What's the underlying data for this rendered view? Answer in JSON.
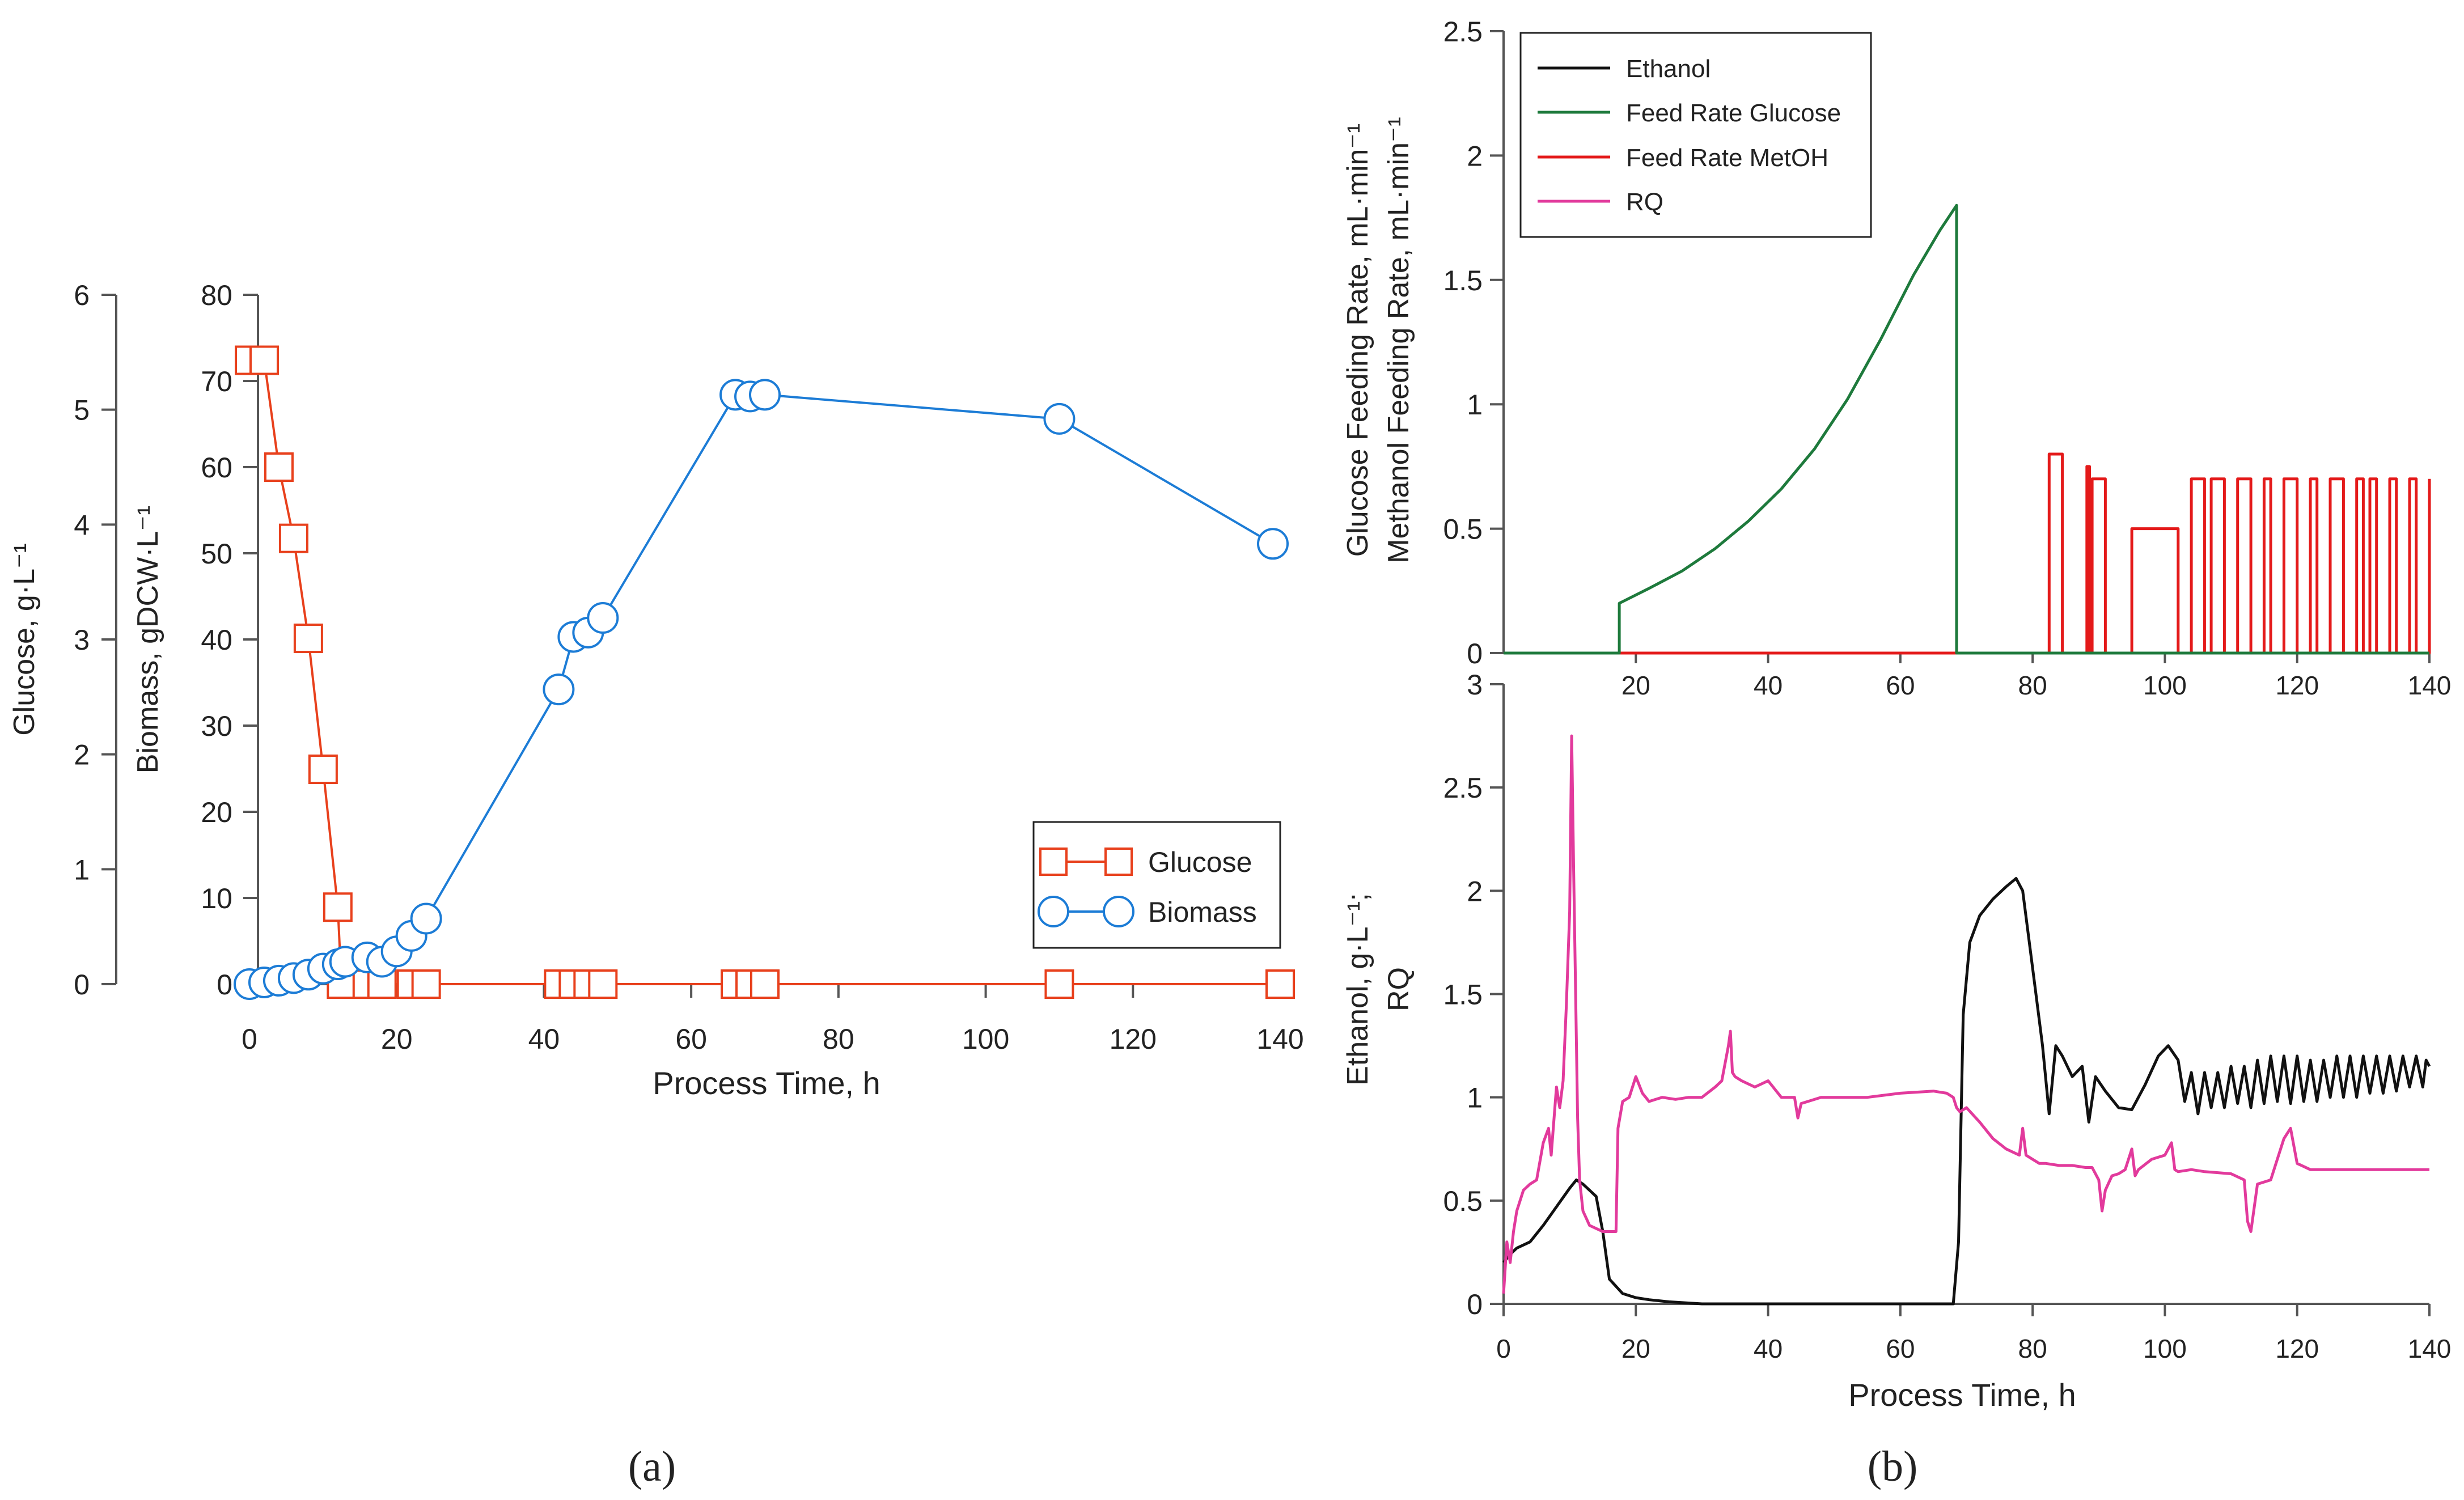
{
  "chart_data": [
    {
      "panel": "a",
      "type": "scatter",
      "panel_label": "(a)",
      "xlabel": "Process Time, h",
      "xlim": [
        0,
        140
      ],
      "xticks": [
        "0",
        "20",
        "40",
        "60",
        "80",
        "100",
        "120",
        "140"
      ],
      "ylabel_left": "Glucose, g·L⁻¹",
      "ylim_left": [
        0,
        6
      ],
      "yticks_left": [
        "0",
        "1",
        "2",
        "3",
        "4",
        "5",
        "6"
      ],
      "ylabel_right": "Biomass, gDCW·L⁻¹",
      "ylim_right": [
        0,
        80
      ],
      "yticks_right": [
        "0",
        "10",
        "20",
        "30",
        "40",
        "50",
        "60",
        "70",
        "80"
      ],
      "legend_position": "lower-right",
      "series": [
        {
          "name": "Glucose",
          "axis": "glucose",
          "marker": "square",
          "color": "#e8401c",
          "x": [
            0,
            2,
            4,
            6,
            8,
            10,
            12,
            12.5,
            16,
            18,
            22,
            24,
            42,
            44,
            46,
            48,
            66,
            68,
            70,
            110,
            140
          ],
          "y": [
            5.43,
            5.43,
            4.5,
            3.88,
            3.01,
            1.87,
            0.67,
            0,
            0,
            0,
            0,
            0,
            0,
            0,
            0,
            0,
            0,
            0,
            0,
            0,
            0
          ]
        },
        {
          "name": "Biomass",
          "axis": "biomass",
          "marker": "circle",
          "color": "#1c7cd6",
          "x": [
            0,
            2,
            4,
            6,
            8,
            10,
            12,
            13,
            16,
            18,
            20,
            22,
            24,
            42,
            44,
            46,
            48,
            66,
            68,
            70,
            110,
            139
          ],
          "y": [
            0,
            0.2,
            0.4,
            0.7,
            1.1,
            1.8,
            2.3,
            2.6,
            3.1,
            2.6,
            3.8,
            5.6,
            7.6,
            34.2,
            40.3,
            40.8,
            42.5,
            68.4,
            68.2,
            68.4,
            65.6,
            51.1
          ]
        }
      ]
    },
    {
      "panel": "b-top",
      "type": "line",
      "panel_label": "(b)",
      "ylabel_line1": "Glucose Feeding Rate, mL·min⁻¹",
      "ylabel_line2": "Methanol Feeding Rate, mL·min⁻¹",
      "xlim": [
        0,
        140
      ],
      "xticks": [
        "20",
        "40",
        "60",
        "80",
        "100",
        "120",
        "140"
      ],
      "ylim": [
        0,
        2.5
      ],
      "yticks": [
        "0",
        "0.5",
        "1",
        "1.5",
        "2",
        "2.5"
      ],
      "legend_position": "top-left",
      "legend": [
        "Ethanol",
        "Feed Rate Glucose",
        "Feed Rate MetOH",
        "RQ"
      ],
      "series": [
        {
          "name": "Feed Rate Glucose",
          "color": "#1e7a3c",
          "x": [
            0,
            17.5,
            17.5,
            22,
            27,
            32,
            37,
            42,
            47,
            52,
            57,
            62,
            66,
            68.5,
            68.5,
            140
          ],
          "y": [
            0,
            0,
            0.2,
            0.26,
            0.33,
            0.42,
            0.53,
            0.66,
            0.82,
            1.02,
            1.26,
            1.52,
            1.7,
            1.8,
            0,
            0
          ]
        },
        {
          "name": "Feed Rate MetOH",
          "color": "#e41a1a",
          "x": [
            0,
            68.5,
            68.5,
            68.5,
            82.5,
            82.5,
            84.5,
            84.5,
            88.2,
            88.2,
            88.6,
            88.6,
            89,
            89,
            91,
            91,
            95,
            95,
            102,
            102,
            104,
            104,
            106,
            106,
            107,
            107,
            109,
            109,
            111,
            111,
            113,
            113,
            115,
            115,
            116,
            116,
            118,
            118,
            120,
            120,
            122,
            122,
            123,
            123,
            125,
            125,
            127,
            127,
            129,
            129,
            130,
            130,
            131,
            131,
            132,
            132,
            134,
            134,
            135,
            135,
            137,
            137,
            138,
            138,
            140,
            140
          ],
          "y": [
            0,
            0,
            1.0,
            0,
            0,
            0.8,
            0.8,
            0,
            0,
            0.75,
            0.75,
            0,
            0,
            0.7,
            0.7,
            0,
            0,
            0.5,
            0.5,
            0,
            0,
            0.7,
            0.7,
            0,
            0,
            0.7,
            0.7,
            0,
            0,
            0.7,
            0.7,
            0,
            0,
            0.7,
            0.7,
            0,
            0,
            0.7,
            0.7,
            0,
            0,
            0.7,
            0.7,
            0,
            0,
            0.7,
            0.7,
            0,
            0,
            0.7,
            0.7,
            0,
            0,
            0.7,
            0.7,
            0,
            0,
            0.7,
            0.7,
            0,
            0,
            0.7,
            0.7,
            0,
            0,
            0.7
          ]
        }
      ]
    },
    {
      "panel": "b-bottom",
      "type": "line",
      "ylabel_line1": "Ethanol, g·L⁻¹;",
      "ylabel_line2": "RQ",
      "xlabel": "Process Time, h",
      "xlim": [
        0,
        140
      ],
      "xticks": [
        "0",
        "20",
        "40",
        "60",
        "80",
        "100",
        "120",
        "140"
      ],
      "ylim": [
        0,
        3
      ],
      "yticks": [
        "0",
        "0.5",
        "1",
        "1.5",
        "2",
        "2.5",
        "3"
      ],
      "series": [
        {
          "name": "Ethanol",
          "color": "#111111",
          "x": [
            0,
            1,
            2,
            4,
            6,
            8,
            10,
            11,
            12,
            13,
            14,
            15,
            16,
            18,
            20,
            22,
            25,
            30,
            40,
            60,
            68,
            68.8,
            69.5,
            70.5,
            72,
            74,
            76,
            77.5,
            78.5,
            79.5,
            80.5,
            81.5,
            82.5,
            83.5,
            84.5,
            86,
            87.5,
            88.5,
            89.5,
            91,
            93,
            95,
            97,
            99,
            100.5,
            102,
            103,
            104,
            105,
            106,
            107,
            108,
            109,
            110,
            111,
            112,
            113,
            114,
            115,
            116,
            117,
            118,
            119,
            120,
            121,
            122,
            123,
            124,
            125,
            126,
            127,
            128,
            129,
            130,
            131,
            132,
            133,
            134,
            135,
            136,
            137,
            138,
            139,
            139.5,
            140
          ],
          "y": [
            0.2,
            0.24,
            0.27,
            0.3,
            0.38,
            0.47,
            0.56,
            0.6,
            0.58,
            0.55,
            0.52,
            0.35,
            0.12,
            0.05,
            0.03,
            0.02,
            0.01,
            0.0,
            0.0,
            0.0,
            0.0,
            0.3,
            1.4,
            1.75,
            1.88,
            1.96,
            2.02,
            2.06,
            2.0,
            1.75,
            1.5,
            1.25,
            0.92,
            1.25,
            1.2,
            1.1,
            1.15,
            0.88,
            1.1,
            1.03,
            0.95,
            0.94,
            1.06,
            1.2,
            1.25,
            1.18,
            0.98,
            1.12,
            0.92,
            1.12,
            0.95,
            1.12,
            0.95,
            1.15,
            0.97,
            1.15,
            0.95,
            1.18,
            0.97,
            1.2,
            0.98,
            1.2,
            0.97,
            1.2,
            0.98,
            1.18,
            0.98,
            1.18,
            1.0,
            1.2,
            1.0,
            1.2,
            1.0,
            1.2,
            1.02,
            1.2,
            1.02,
            1.2,
            1.03,
            1.2,
            1.05,
            1.2,
            1.05,
            1.18,
            1.15
          ]
        },
        {
          "name": "RQ",
          "color": "#e23a9c",
          "x": [
            0,
            0.5,
            1,
            1.5,
            2,
            3,
            4,
            5,
            6,
            6.8,
            7.2,
            8,
            8.5,
            9,
            9.5,
            10,
            10.3,
            10.6,
            10.9,
            11.2,
            11.5,
            12,
            13,
            15,
            17,
            17.3,
            18,
            19,
            20,
            21,
            22,
            23,
            24,
            26,
            28,
            30,
            32,
            33,
            34,
            34.3,
            34.6,
            35,
            36,
            38,
            40,
            42,
            44,
            44.5,
            45,
            46,
            48,
            50,
            55,
            60,
            65,
            67,
            68,
            68.5,
            69,
            70,
            72,
            74,
            76,
            78,
            78.5,
            79,
            80,
            81,
            82,
            84,
            86,
            88,
            89,
            90,
            90.5,
            91,
            92,
            93,
            94,
            95,
            95.5,
            96,
            98,
            100,
            101,
            101.5,
            102,
            104,
            106,
            110,
            112,
            112.5,
            113,
            114,
            116,
            117,
            118,
            119,
            120,
            122,
            126,
            130,
            135,
            140
          ],
          "y": [
            0.05,
            0.3,
            0.2,
            0.35,
            0.45,
            0.55,
            0.58,
            0.6,
            0.78,
            0.85,
            0.72,
            1.05,
            0.95,
            1.08,
            1.45,
            1.9,
            2.75,
            2.1,
            1.5,
            0.9,
            0.6,
            0.45,
            0.38,
            0.35,
            0.35,
            0.85,
            0.98,
            1.0,
            1.1,
            1.02,
            0.98,
            0.99,
            1.0,
            0.99,
            1.0,
            1.0,
            1.05,
            1.08,
            1.25,
            1.32,
            1.12,
            1.1,
            1.08,
            1.05,
            1.08,
            1.0,
            1.0,
            0.9,
            0.97,
            0.98,
            1.0,
            1.0,
            1.0,
            1.02,
            1.03,
            1.02,
            1.0,
            0.95,
            0.93,
            0.95,
            0.88,
            0.8,
            0.75,
            0.72,
            0.85,
            0.72,
            0.7,
            0.68,
            0.68,
            0.67,
            0.67,
            0.66,
            0.66,
            0.6,
            0.45,
            0.55,
            0.62,
            0.63,
            0.65,
            0.75,
            0.62,
            0.65,
            0.7,
            0.72,
            0.78,
            0.65,
            0.64,
            0.65,
            0.64,
            0.63,
            0.6,
            0.4,
            0.35,
            0.58,
            0.6,
            0.7,
            0.8,
            0.85,
            0.68,
            0.65,
            0.65,
            0.65,
            0.65,
            0.65
          ]
        }
      ]
    }
  ]
}
